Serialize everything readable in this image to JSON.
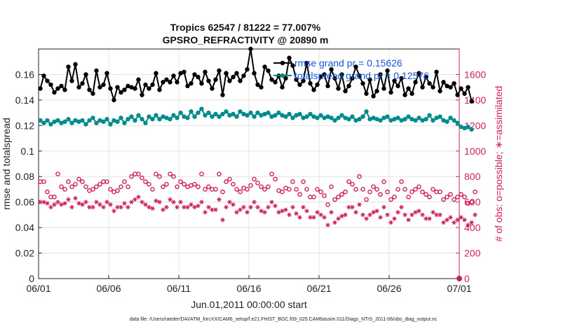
{
  "chart_data": {
    "type": "line",
    "title_line1": "Tropics 62547 / 81222 = 77.007%",
    "title_line2": "GPSRO_REFRACTIVITY @ 20890 m",
    "xlabel": "Jun.01,2011 00:00:00 start",
    "ylabel_left": "rmse and totalspread",
    "ylabel_right": "# of obs: o=possible; ∗=assimilated",
    "footer": "data file: /Users/raeder/DAI/ATM_forcXX/CAM6_setup/f.e21.FHIST_BGC.f09_025.CAM6assim.011/Diags_NTrS_2011-06/obs_diag_output.nc",
    "x_ticks": [
      "06/01",
      "06/06",
      "06/11",
      "06/16",
      "06/21",
      "06/26",
      "07/01"
    ],
    "x_tick_days": [
      0,
      5,
      10,
      15,
      20,
      25,
      30
    ],
    "xlim_days": [
      0,
      30
    ],
    "ylim_left": [
      0,
      0.18
    ],
    "y_ticks_left": [
      "0",
      "0.02",
      "0.04",
      "0.06",
      "0.08",
      "0.1",
      "0.12",
      "0.14",
      "0.16"
    ],
    "ylim_right": [
      0,
      1800
    ],
    "y_ticks_right": [
      "0",
      "200",
      "400",
      "600",
      "800",
      "1000",
      "1200",
      "1400",
      "1600"
    ],
    "grid": true,
    "legend_position": "top-right",
    "colors": {
      "rmse": "#000000",
      "spread": "#008b8b",
      "obs": "#cc1f5a",
      "legend_text": "#1a55d6"
    },
    "series": [
      {
        "name": "rmse grand pr = 0.15626",
        "step_days": 0.25,
        "values": [
          0.149,
          0.159,
          0.155,
          0.152,
          0.146,
          0.149,
          0.151,
          0.148,
          0.166,
          0.155,
          0.168,
          0.15,
          0.153,
          0.16,
          0.148,
          0.145,
          0.163,
          0.15,
          0.152,
          0.161,
          0.149,
          0.14,
          0.15,
          0.146,
          0.148,
          0.151,
          0.15,
          0.149,
          0.156,
          0.144,
          0.152,
          0.149,
          0.152,
          0.161,
          0.148,
          0.154,
          0.156,
          0.154,
          0.159,
          0.154,
          0.161,
          0.162,
          0.151,
          0.153,
          0.16,
          0.158,
          0.153,
          0.162,
          0.155,
          0.149,
          0.156,
          0.163,
          0.144,
          0.161,
          0.155,
          0.158,
          0.161,
          0.155,
          0.159,
          0.164,
          0.18,
          0.161,
          0.152,
          0.15,
          0.166,
          0.163,
          0.156,
          0.154,
          0.159,
          0.15,
          0.157,
          0.173,
          0.167,
          0.156,
          0.152,
          0.155,
          0.169,
          0.153,
          0.148,
          0.152,
          0.158,
          0.16,
          0.151,
          0.164,
          0.157,
          0.149,
          0.16,
          0.147,
          0.151,
          0.157,
          0.166,
          0.159,
          0.153,
          0.145,
          0.156,
          0.143,
          0.147,
          0.16,
          0.149,
          0.163,
          0.146,
          0.155,
          0.151,
          0.157,
          0.144,
          0.149,
          0.145,
          0.154,
          0.161,
          0.15,
          0.158,
          0.153,
          0.15,
          0.162,
          0.147,
          0.154,
          0.151,
          0.15,
          0.153,
          0.144,
          0.149,
          0.145,
          0.15,
          0.139
        ]
      },
      {
        "name": "totalspread grand pr = 0.12576",
        "step_days": 0.25,
        "values": [
          0.124,
          0.122,
          0.124,
          0.121,
          0.123,
          0.124,
          0.122,
          0.123,
          0.125,
          0.122,
          0.124,
          0.123,
          0.124,
          0.121,
          0.124,
          0.126,
          0.122,
          0.124,
          0.123,
          0.125,
          0.121,
          0.124,
          0.123,
          0.126,
          0.122,
          0.125,
          0.127,
          0.124,
          0.128,
          0.125,
          0.122,
          0.127,
          0.125,
          0.128,
          0.125,
          0.127,
          0.126,
          0.125,
          0.128,
          0.126,
          0.13,
          0.127,
          0.126,
          0.131,
          0.127,
          0.13,
          0.133,
          0.128,
          0.13,
          0.127,
          0.129,
          0.127,
          0.129,
          0.131,
          0.128,
          0.129,
          0.127,
          0.131,
          0.129,
          0.128,
          0.13,
          0.127,
          0.13,
          0.128,
          0.129,
          0.13,
          0.127,
          0.128,
          0.13,
          0.128,
          0.127,
          0.129,
          0.126,
          0.128,
          0.129,
          0.126,
          0.127,
          0.129,
          0.127,
          0.126,
          0.128,
          0.126,
          0.127,
          0.126,
          0.124,
          0.126,
          0.128,
          0.126,
          0.125,
          0.127,
          0.124,
          0.125,
          0.127,
          0.131,
          0.125,
          0.126,
          0.125,
          0.124,
          0.126,
          0.127,
          0.124,
          0.125,
          0.126,
          0.124,
          0.125,
          0.127,
          0.125,
          0.124,
          0.126,
          0.124,
          0.125,
          0.128,
          0.124,
          0.126,
          0.127,
          0.124,
          0.123,
          0.126,
          0.124,
          0.122,
          0.119,
          0.118,
          0.119,
          0.117
        ]
      }
    ],
    "obs_possible": {
      "step_days": 0.25,
      "values": [
        760,
        760,
        680,
        640,
        640,
        820,
        720,
        700,
        760,
        720,
        740,
        780,
        760,
        720,
        690,
        700,
        720,
        740,
        760,
        760,
        700,
        680,
        690,
        720,
        760,
        720,
        800,
        820,
        820,
        790,
        760,
        740,
        700,
        820,
        800,
        720,
        740,
        820,
        800,
        720,
        760,
        740,
        720,
        730,
        740,
        720,
        820,
        700,
        720,
        700,
        700,
        820,
        680,
        760,
        780,
        740,
        700,
        680,
        710,
        700,
        730,
        780,
        750,
        720,
        700,
        720,
        820,
        780,
        690,
        680,
        710,
        700,
        760,
        700,
        660,
        760,
        700,
        640,
        640,
        700,
        680,
        650,
        580,
        720,
        620,
        640,
        660,
        680,
        760,
        740,
        700,
        800,
        700,
        620,
        680,
        720,
        700,
        660,
        760,
        680,
        620,
        640,
        700,
        760,
        700,
        640,
        680,
        700,
        720,
        680,
        660,
        640,
        700,
        680,
        680,
        620,
        640,
        660,
        620,
        640,
        660,
        640,
        590,
        600,
        680
      ]
    },
    "obs_assimilated": {
      "step_days": 0.25,
      "values": [
        600,
        600,
        590,
        560,
        580,
        600,
        580,
        590,
        620,
        560,
        630,
        590,
        580,
        600,
        560,
        560,
        600,
        580,
        560,
        600,
        580,
        530,
        560,
        560,
        590,
        560,
        600,
        620,
        640,
        600,
        580,
        560,
        550,
        610,
        600,
        540,
        560,
        620,
        600,
        560,
        600,
        560,
        560,
        580,
        560,
        570,
        600,
        520,
        560,
        540,
        540,
        620,
        460,
        560,
        600,
        580,
        520,
        540,
        560,
        520,
        560,
        600,
        560,
        530,
        520,
        560,
        600,
        570,
        520,
        530,
        540,
        500,
        560,
        510,
        480,
        560,
        530,
        480,
        480,
        520,
        500,
        480,
        420,
        520,
        440,
        470,
        490,
        500,
        560,
        560,
        520,
        580,
        500,
        470,
        500,
        520,
        530,
        480,
        560,
        500,
        440,
        470,
        520,
        560,
        500,
        460,
        500,
        520,
        530,
        500,
        470,
        470,
        520,
        500,
        500,
        440,
        460,
        480,
        440,
        460,
        480,
        460,
        420,
        440,
        500
      ]
    }
  }
}
